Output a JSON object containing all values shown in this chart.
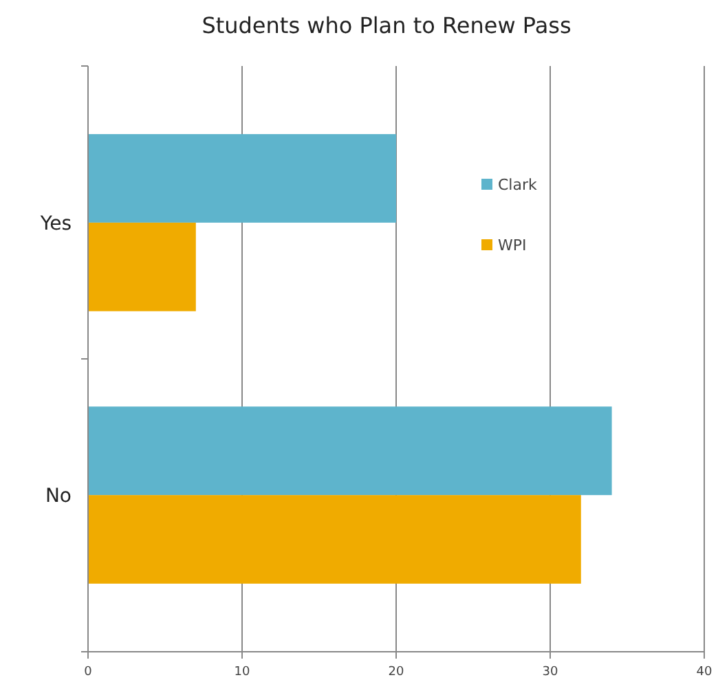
{
  "chart_data": {
    "type": "bar",
    "orientation": "horizontal",
    "title": "Students who Plan to Renew Pass",
    "categories": [
      "Yes",
      "No"
    ],
    "series": [
      {
        "name": "Clark",
        "color": "#5eb4cc",
        "values": [
          20,
          34
        ]
      },
      {
        "name": "WPI",
        "color": "#f0ab00",
        "values": [
          7,
          32
        ]
      }
    ],
    "xlim": [
      0,
      40
    ],
    "xticks": [
      0,
      10,
      20,
      30,
      40
    ],
    "grid": "x",
    "legend": "top right"
  }
}
